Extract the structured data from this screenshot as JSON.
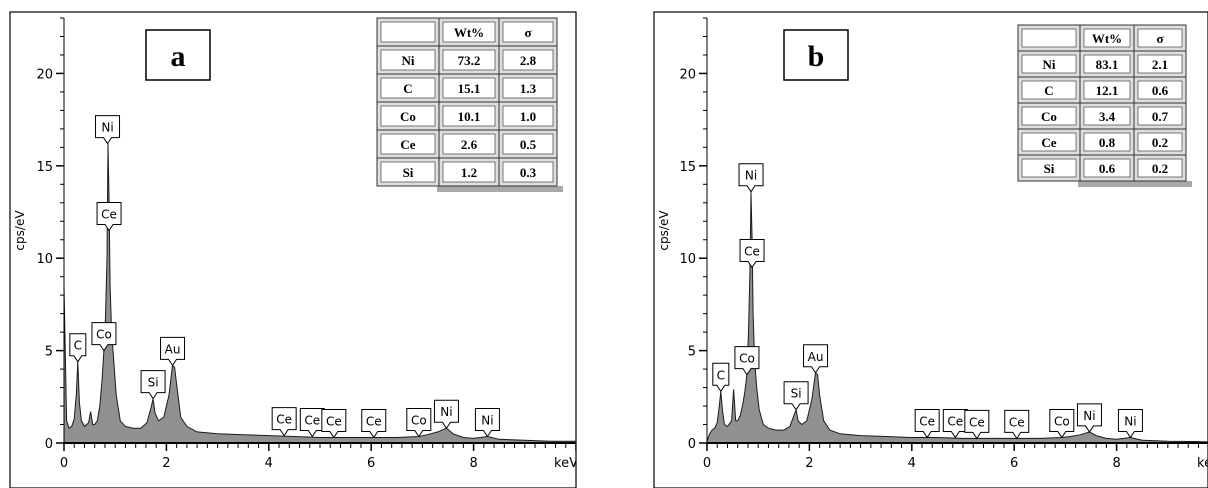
{
  "chart_data": [
    {
      "type": "area",
      "panel_label": "a",
      "xlabel": "keV",
      "ylabel": "cps/eV",
      "xlim": [
        0,
        10
      ],
      "ylim": [
        0,
        23
      ],
      "x_ticks": [
        "0",
        "2",
        "4",
        "6",
        "8"
      ],
      "y_ticks": [
        "0",
        "5",
        "10",
        "15",
        "20"
      ],
      "fill_color": "#909090",
      "grid": false,
      "spectrum": {
        "x": [
          0,
          0.05,
          0.1,
          0.15,
          0.2,
          0.24,
          0.27,
          0.3,
          0.34,
          0.4,
          0.48,
          0.52,
          0.56,
          0.6,
          0.65,
          0.7,
          0.74,
          0.78,
          0.81,
          0.84,
          0.86,
          0.88,
          0.9,
          0.93,
          0.97,
          1.02,
          1.1,
          1.2,
          1.35,
          1.5,
          1.62,
          1.7,
          1.74,
          1.78,
          1.85,
          1.95,
          2.05,
          2.12,
          2.16,
          2.2,
          2.28,
          2.4,
          2.6,
          3.0,
          3.5,
          4.0,
          4.5,
          5.0,
          5.5,
          6.0,
          6.5,
          6.93,
          7.1,
          7.3,
          7.47,
          7.6,
          7.8,
          8.0,
          8.27,
          8.5,
          9.0,
          9.5,
          10.0
        ],
        "y": [
          8.5,
          1.2,
          0.8,
          0.9,
          1.3,
          2.6,
          4.4,
          2.2,
          1.2,
          0.9,
          1.1,
          1.7,
          1.0,
          1.0,
          1.2,
          2.0,
          3.3,
          5.0,
          6.8,
          10.0,
          16.2,
          13.0,
          8.5,
          6.0,
          4.5,
          2.6,
          1.2,
          0.9,
          0.8,
          0.8,
          1.1,
          1.9,
          2.4,
          1.6,
          1.2,
          1.4,
          2.6,
          4.2,
          4.1,
          3.2,
          1.4,
          0.9,
          0.6,
          0.5,
          0.45,
          0.4,
          0.35,
          0.3,
          0.3,
          0.3,
          0.3,
          0.35,
          0.45,
          0.6,
          0.8,
          0.5,
          0.3,
          0.25,
          0.35,
          0.2,
          0.15,
          0.1,
          0.1
        ]
      },
      "peak_labels": [
        {
          "label": "C",
          "x": 0.27,
          "y": 4.4
        },
        {
          "label": "Co",
          "x": 0.78,
          "y": 5.0
        },
        {
          "label": "Ni",
          "x": 0.85,
          "y": 16.2
        },
        {
          "label": "Ce",
          "x": 0.88,
          "y": 11.5
        },
        {
          "label": "Si",
          "x": 1.74,
          "y": 2.4
        },
        {
          "label": "Au",
          "x": 2.12,
          "y": 4.2
        },
        {
          "label": "Ce",
          "x": 4.3,
          "y": 0.4
        },
        {
          "label": "Ce",
          "x": 4.85,
          "y": 0.35
        },
        {
          "label": "Ce",
          "x": 5.27,
          "y": 0.3
        },
        {
          "label": "Ce",
          "x": 6.05,
          "y": 0.3
        },
        {
          "label": "Co",
          "x": 6.93,
          "y": 0.35
        },
        {
          "label": "Ni",
          "x": 7.47,
          "y": 0.8
        },
        {
          "label": "Ni",
          "x": 8.27,
          "y": 0.35
        }
      ],
      "table": {
        "headers": [
          "",
          "Wt%",
          "σ"
        ],
        "rows": [
          [
            "Ni",
            "73.2",
            "2.8"
          ],
          [
            "C",
            "15.1",
            "1.3"
          ],
          [
            "Co",
            "10.1",
            "1.0"
          ],
          [
            "Ce",
            "2.6",
            "0.5"
          ],
          [
            "Si",
            "1.2",
            "0.3"
          ]
        ]
      }
    },
    {
      "type": "area",
      "panel_label": "b",
      "xlabel": "keV",
      "ylabel": "cps/eV",
      "xlim": [
        0,
        10
      ],
      "ylim": [
        0,
        23
      ],
      "x_ticks": [
        "0",
        "2",
        "4",
        "6",
        "8"
      ],
      "y_ticks": [
        "0",
        "5",
        "10",
        "15",
        "20"
      ],
      "fill_color": "#909090",
      "grid": false,
      "spectrum": {
        "x": [
          0,
          0.05,
          0.1,
          0.15,
          0.2,
          0.24,
          0.27,
          0.3,
          0.34,
          0.4,
          0.48,
          0.52,
          0.56,
          0.6,
          0.65,
          0.7,
          0.74,
          0.78,
          0.81,
          0.84,
          0.86,
          0.88,
          0.9,
          0.93,
          0.97,
          1.02,
          1.1,
          1.2,
          1.35,
          1.5,
          1.62,
          1.7,
          1.74,
          1.78,
          1.85,
          1.95,
          2.05,
          2.12,
          2.16,
          2.2,
          2.28,
          2.4,
          2.6,
          3.0,
          3.5,
          4.0,
          4.5,
          5.0,
          5.5,
          6.0,
          6.5,
          6.93,
          7.1,
          7.3,
          7.47,
          7.6,
          7.8,
          8.0,
          8.27,
          8.5,
          9.0,
          9.5,
          10.0
        ],
        "y": [
          0.1,
          0.5,
          0.7,
          0.8,
          1.1,
          2.0,
          2.8,
          1.8,
          1.0,
          0.9,
          1.2,
          2.9,
          1.2,
          1.2,
          1.5,
          2.1,
          2.8,
          3.7,
          6.0,
          9.5,
          13.6,
          11.0,
          7.0,
          4.5,
          3.0,
          1.8,
          1.0,
          0.8,
          0.7,
          0.7,
          0.9,
          1.5,
          1.8,
          1.2,
          1.0,
          1.2,
          2.4,
          3.8,
          3.7,
          2.6,
          1.2,
          0.7,
          0.5,
          0.4,
          0.35,
          0.3,
          0.3,
          0.25,
          0.25,
          0.25,
          0.25,
          0.3,
          0.35,
          0.45,
          0.6,
          0.4,
          0.25,
          0.2,
          0.3,
          0.15,
          0.1,
          0.08,
          0.05
        ]
      },
      "peak_labels": [
        {
          "label": "C",
          "x": 0.27,
          "y": 2.8
        },
        {
          "label": "Co",
          "x": 0.78,
          "y": 3.7
        },
        {
          "label": "Ni",
          "x": 0.86,
          "y": 13.6
        },
        {
          "label": "Ce",
          "x": 0.88,
          "y": 9.5
        },
        {
          "label": "Si",
          "x": 1.74,
          "y": 1.8
        },
        {
          "label": "Au",
          "x": 2.12,
          "y": 3.8
        },
        {
          "label": "Ce",
          "x": 4.3,
          "y": 0.3
        },
        {
          "label": "Ce",
          "x": 4.85,
          "y": 0.3
        },
        {
          "label": "Ce",
          "x": 5.27,
          "y": 0.25
        },
        {
          "label": "Ce",
          "x": 6.05,
          "y": 0.25
        },
        {
          "label": "Co",
          "x": 6.93,
          "y": 0.3
        },
        {
          "label": "Ni",
          "x": 7.47,
          "y": 0.6
        },
        {
          "label": "Ni",
          "x": 8.27,
          "y": 0.3
        }
      ],
      "table": {
        "headers": [
          "",
          "Wt%",
          "σ"
        ],
        "rows": [
          [
            "Ni",
            "83.1",
            "2.1"
          ],
          [
            "C",
            "12.1",
            "0.6"
          ],
          [
            "Co",
            "3.4",
            "0.7"
          ],
          [
            "Ce",
            "0.8",
            "0.2"
          ],
          [
            "Si",
            "0.6",
            "0.2"
          ]
        ]
      }
    }
  ]
}
